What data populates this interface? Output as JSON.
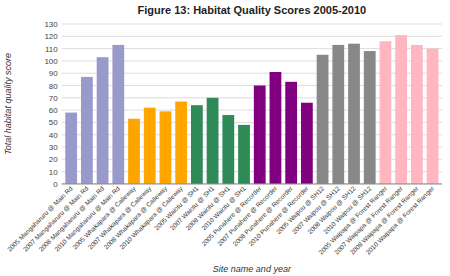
{
  "chart_data": {
    "type": "bar",
    "title": "Figure 13: Habitat Quality Scores 2005-2010",
    "xlabel": "Site name and year",
    "ylabel": "Total habitat quality score",
    "categories": [
      "2005 Mangaharuru @ Main Rd",
      "2007 Mangaharuru @ Main Rd",
      "2008 Mangaharuru @ Main Rd",
      "2010 Mangaharuru @ Main Rd",
      "2005 Whakapara @ Calleway",
      "2007 Whakapara @ Calleway",
      "2008 Whakapara @ Calleway",
      "2010 Whakapara @ Calleway",
      "2005 Waiotu @ SH1",
      "2007 Waiotu @ SH1",
      "2008 Waiotu @ SH1",
      "2010 Waiotu @ SH1",
      "2005 Punahere @ Recorder",
      "2007 Punahere @ Recorder",
      "2008 Punahere @ Recorder",
      "2010 Punahere @ Recorder",
      "2005 Waipou @ SH12",
      "2007 Waipou @ SH12",
      "2008 Waipou @ SH12",
      "2010 Waipou @ SH12",
      "2005 Waipapa @ Forest Ranger",
      "2007 Waipapa @ Forest Ranger",
      "2008 Waipapa @ Forest Ranger",
      "2010 Waipapa @ Forest Ranger"
    ],
    "values": [
      58,
      87,
      103,
      113,
      53,
      62,
      59,
      67,
      64,
      70,
      56,
      48,
      80,
      91,
      83,
      66,
      105,
      113,
      114,
      108,
      116,
      121,
      113,
      110
    ],
    "colors": [
      "#9999CC",
      "#9999CC",
      "#9999CC",
      "#9999CC",
      "#FFA500",
      "#FFA500",
      "#FFA500",
      "#FFA500",
      "#2E8B57",
      "#2E8B57",
      "#2E8B57",
      "#2E8B57",
      "#800080",
      "#800080",
      "#800080",
      "#800080",
      "#888888",
      "#888888",
      "#888888",
      "#888888",
      "#FFB6C1",
      "#FFB6C1",
      "#FFB6C1",
      "#FFB6C1"
    ],
    "ylim": [
      0,
      130
    ],
    "yticks": [
      0,
      10,
      20,
      30,
      40,
      50,
      60,
      70,
      80,
      90,
      100,
      110,
      120,
      130
    ],
    "grid": true
  }
}
